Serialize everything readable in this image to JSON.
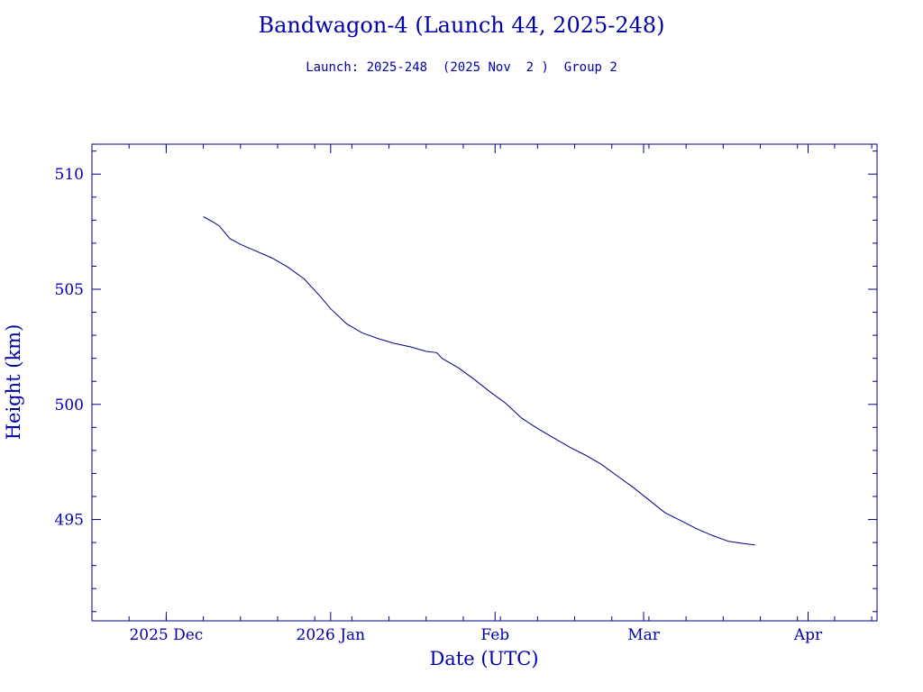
{
  "header": {
    "title": "Bandwagon-4 (Launch 44, 2025-248)",
    "subtitle": "Launch: 2025-248  (2025 Nov  2 )  Group 2"
  },
  "colors": {
    "text": "#0000a8",
    "axis": "#000080",
    "line": "#000080",
    "background": "#ffffff"
  },
  "chart_data": {
    "type": "line",
    "title": "Bandwagon-4 (Launch 44, 2025-248)",
    "subtitle": "Launch: 2025-248  (2025 Nov  2 )  Group 2",
    "xlabel": "Date (UTC)",
    "ylabel": "Height (km)",
    "xlim": [
      "2025-11-17",
      "2026-04-14"
    ],
    "ylim": [
      490.6,
      511.3
    ],
    "grid": false,
    "x_ticks": [
      {
        "date": "2025-12-01",
        "label": "2025 Dec"
      },
      {
        "date": "2026-01-01",
        "label": "2026 Jan"
      },
      {
        "date": "2026-02-01",
        "label": "Feb"
      },
      {
        "date": "2026-03-01",
        "label": "Mar"
      },
      {
        "date": "2026-04-01",
        "label": "Apr"
      }
    ],
    "y_ticks": [
      495,
      500,
      505,
      510
    ],
    "series": [
      {
        "x": [
          "2025-12-08",
          "2025-12-10",
          "2025-12-11",
          "2025-12-13",
          "2025-12-15",
          "2025-12-18",
          "2025-12-21",
          "2025-12-24",
          "2025-12-27",
          "2025-12-30",
          "2026-01-01",
          "2026-01-04",
          "2026-01-07",
          "2026-01-10",
          "2026-01-13",
          "2026-01-16",
          "2026-01-19",
          "2026-01-21",
          "2026-01-22",
          "2026-01-25",
          "2026-01-28",
          "2026-01-31",
          "2026-02-03",
          "2026-02-06",
          "2026-02-09",
          "2026-02-12",
          "2026-02-15",
          "2026-02-18",
          "2026-02-21",
          "2026-02-24",
          "2026-02-27",
          "2026-03-02",
          "2026-03-05",
          "2026-03-08",
          "2026-03-11",
          "2026-03-14",
          "2026-03-17",
          "2026-03-20",
          "2026-03-22"
        ],
        "y": [
          508.15,
          507.9,
          507.75,
          507.2,
          506.95,
          506.65,
          506.35,
          505.95,
          505.45,
          504.7,
          504.15,
          503.5,
          503.1,
          502.85,
          502.65,
          502.5,
          502.3,
          502.25,
          502.0,
          501.6,
          501.1,
          500.55,
          500.05,
          499.4,
          498.95,
          498.55,
          498.15,
          497.8,
          497.4,
          496.9,
          496.4,
          495.85,
          495.3,
          494.95,
          494.6,
          494.3,
          494.05,
          493.95,
          493.9
        ]
      }
    ]
  }
}
